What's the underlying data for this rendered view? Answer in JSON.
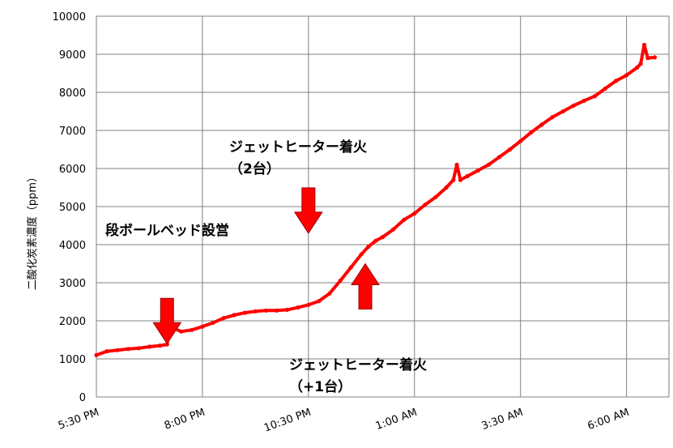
{
  "chart_data": {
    "type": "line",
    "title": "",
    "xlabel": "",
    "ylabel": "二酸化炭素濃度（ppm）",
    "x_ticks": [
      "5:30 PM",
      "8:00 PM",
      "10:30 PM",
      "1:00 AM",
      "3:30 AM",
      "6:00 AM"
    ],
    "y_ticks": [
      "0",
      "1000",
      "2000",
      "3000",
      "4000",
      "5000",
      "6000",
      "7000",
      "8000",
      "9000",
      "10000"
    ],
    "xlim_hours_labels": [
      "5:30 PM",
      "7:00 AM"
    ],
    "ylim": [
      0,
      10000
    ],
    "grid": true,
    "series_color": "#ff0000",
    "series": [
      {
        "name": "",
        "points": [
          [
            "5:30 PM",
            1100
          ],
          [
            "5:45 PM",
            1200
          ],
          [
            "6:00 PM",
            1230
          ],
          [
            "6:15 PM",
            1260
          ],
          [
            "6:30 PM",
            1280
          ],
          [
            "6:45 PM",
            1320
          ],
          [
            "7:00 PM",
            1350
          ],
          [
            "7:10 PM",
            1380
          ],
          [
            "7:15 PM",
            2100
          ],
          [
            "7:20 PM",
            1800
          ],
          [
            "7:30 PM",
            1720
          ],
          [
            "7:45 PM",
            1760
          ],
          [
            "8:00 PM",
            1850
          ],
          [
            "8:15 PM",
            1950
          ],
          [
            "8:30 PM",
            2070
          ],
          [
            "8:45 PM",
            2150
          ],
          [
            "9:00 PM",
            2210
          ],
          [
            "9:15 PM",
            2250
          ],
          [
            "9:30 PM",
            2270
          ],
          [
            "9:45 PM",
            2270
          ],
          [
            "10:00 PM",
            2290
          ],
          [
            "10:15 PM",
            2350
          ],
          [
            "10:30 PM",
            2420
          ],
          [
            "10:45 PM",
            2520
          ],
          [
            "11:00 PM",
            2720
          ],
          [
            "11:15 PM",
            3050
          ],
          [
            "11:30 PM",
            3400
          ],
          [
            "11:45 PM",
            3750
          ],
          [
            "11:55 PM",
            3950
          ],
          [
            "12:05 AM",
            4100
          ],
          [
            "12:15 AM",
            4200
          ],
          [
            "12:30 AM",
            4400
          ],
          [
            "12:45 AM",
            4650
          ],
          [
            "1:00 AM",
            4820
          ],
          [
            "1:15 AM",
            5050
          ],
          [
            "1:30 AM",
            5250
          ],
          [
            "1:45 AM",
            5500
          ],
          [
            "1:55 AM",
            5700
          ],
          [
            "2:00 AM",
            6100
          ],
          [
            "2:05 AM",
            5700
          ],
          [
            "2:15 AM",
            5800
          ],
          [
            "2:30 AM",
            5950
          ],
          [
            "2:45 AM",
            6100
          ],
          [
            "3:00 AM",
            6300
          ],
          [
            "3:15 AM",
            6500
          ],
          [
            "3:30 AM",
            6720
          ],
          [
            "3:45 AM",
            6950
          ],
          [
            "4:00 AM",
            7150
          ],
          [
            "4:15 AM",
            7350
          ],
          [
            "4:30 AM",
            7500
          ],
          [
            "4:45 AM",
            7650
          ],
          [
            "5:00 AM",
            7780
          ],
          [
            "5:15 AM",
            7900
          ],
          [
            "5:30 AM",
            8100
          ],
          [
            "5:45 AM",
            8300
          ],
          [
            "6:00 AM",
            8450
          ],
          [
            "6:15 AM",
            8650
          ],
          [
            "6:20 AM",
            8750
          ],
          [
            "6:25 AM",
            9250
          ],
          [
            "6:30 AM",
            8900
          ],
          [
            "6:40 AM",
            8920
          ]
        ]
      }
    ],
    "annotations": [
      {
        "lines": [
          "段ボールベッド設営"
        ],
        "arrow": "down",
        "target": [
          "7:10 PM",
          1400
        ]
      },
      {
        "lines": [
          "ジェットヒーター着火",
          "（2台）"
        ],
        "arrow": "down",
        "target": [
          "10:30 PM",
          4300
        ]
      },
      {
        "lines": [
          "ジェットヒーター着火",
          "（+1台）"
        ],
        "arrow": "up",
        "target": [
          "11:55 PM",
          3500
        ]
      }
    ]
  }
}
